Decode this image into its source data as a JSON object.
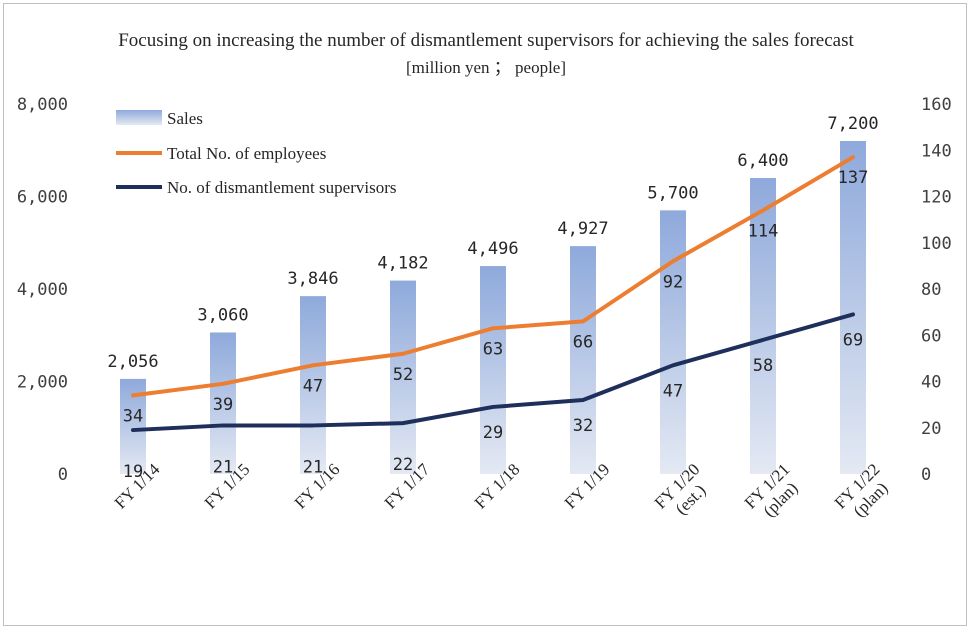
{
  "chart_data": {
    "type": "bar",
    "title": "Focusing on increasing the number of dismantlement supervisors for achieving the sales forecast",
    "subtitle": "[million yen ； people]",
    "categories": [
      [
        "FY 1/14"
      ],
      [
        "FY 1/15"
      ],
      [
        "FY 1/16"
      ],
      [
        "FY 1/17"
      ],
      [
        "FY 1/18"
      ],
      [
        "FY 1/19"
      ],
      [
        "FY 1/20",
        "(est.)"
      ],
      [
        "FY 1/21",
        "(plan)"
      ],
      [
        "FY 1/22",
        "(plan)"
      ]
    ],
    "y_left": {
      "range": [
        0,
        8000
      ],
      "ticks": [
        "0",
        "2,000",
        "4,000",
        "6,000",
        "8,000"
      ]
    },
    "y_right": {
      "range": [
        0,
        160
      ],
      "ticks": [
        "0",
        "20",
        "40",
        "60",
        "80",
        "100",
        "120",
        "140",
        "160"
      ]
    },
    "series": [
      {
        "name": "Sales",
        "kind": "bar",
        "axis": "left",
        "values": [
          2056,
          3060,
          3846,
          4182,
          4496,
          4927,
          5700,
          6400,
          7200
        ],
        "labels": [
          "2,056",
          "3,060",
          "3,846",
          "4,182",
          "4,496",
          "4,927",
          "5,700",
          "6,400",
          "7,200"
        ],
        "color": "#8ea9db"
      },
      {
        "name": "Total No. of employees",
        "kind": "line",
        "axis": "right",
        "values": [
          34,
          39,
          47,
          52,
          63,
          66,
          92,
          114,
          137
        ],
        "labels": [
          "34",
          "39",
          "47",
          "52",
          "63",
          "66",
          "92",
          "114",
          "137"
        ],
        "color": "#ed7d31"
      },
      {
        "name": "No. of dismantlement supervisors",
        "kind": "line",
        "axis": "right",
        "values": [
          19,
          21,
          21,
          22,
          29,
          32,
          47,
          58,
          69
        ],
        "labels": [
          "19",
          "21",
          "21",
          "22",
          "29",
          "32",
          "47",
          "58",
          "69"
        ],
        "color": "#1f2f5c"
      }
    ],
    "legend_position": "top-left",
    "grid": false
  }
}
